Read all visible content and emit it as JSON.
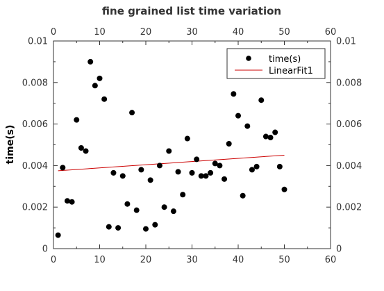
{
  "chart_data": {
    "type": "scatter",
    "title": "fine grained list time variation",
    "xlabel": "",
    "ylabel": "time(s)",
    "xlim": [
      0,
      60
    ],
    "ylim": [
      0,
      0.01
    ],
    "xticks": [
      "0",
      "10",
      "20",
      "30",
      "40",
      "50",
      "60"
    ],
    "yticks": [
      "0",
      "0.002",
      "0.004",
      "0.006",
      "0.008",
      "0.01"
    ],
    "grid": false,
    "legend_position": "top-right",
    "series": [
      {
        "name": "time(s)",
        "kind": "scatter",
        "color": "#000000",
        "x": [
          1,
          2,
          3,
          4,
          5,
          6,
          7,
          8,
          9,
          10,
          11,
          12,
          13,
          14,
          15,
          16,
          17,
          18,
          19,
          20,
          21,
          22,
          23,
          24,
          25,
          26,
          27,
          28,
          29,
          30,
          31,
          32,
          33,
          34,
          35,
          36,
          37,
          38,
          39,
          40,
          41,
          42,
          43,
          44,
          45,
          46,
          47,
          48,
          49,
          50
        ],
        "y": [
          0.00065,
          0.0039,
          0.0023,
          0.00225,
          0.0062,
          0.00485,
          0.0047,
          0.009,
          0.00785,
          0.0082,
          0.0072,
          0.00105,
          0.00365,
          0.001,
          0.0035,
          0.00215,
          0.00655,
          0.00185,
          0.0038,
          0.00095,
          0.0033,
          0.00115,
          0.004,
          0.002,
          0.0047,
          0.0018,
          0.0037,
          0.0026,
          0.0053,
          0.00365,
          0.0043,
          0.0035,
          0.0035,
          0.00365,
          0.0041,
          0.004,
          0.00335,
          0.00505,
          0.00745,
          0.0064,
          0.00255,
          0.0059,
          0.0038,
          0.00395,
          0.00715,
          0.0054,
          0.00535,
          0.0056,
          0.00395,
          0.00285
        ]
      },
      {
        "name": "LinearFit1",
        "kind": "line",
        "color": "#cc0000",
        "x": [
          1,
          50
        ],
        "y": [
          0.00375,
          0.0045
        ]
      }
    ]
  }
}
